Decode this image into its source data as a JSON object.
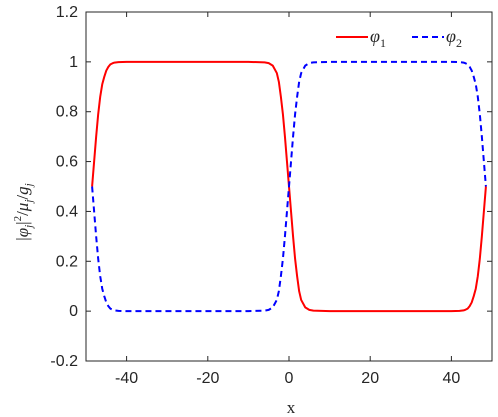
{
  "chart_data": {
    "type": "line",
    "xlabel": "x",
    "ylabel": "|φj|²/μj/gj",
    "ylabel_parts": {
      "phi": "φ",
      "j1": "j",
      "sq": "2",
      "mu": "μ",
      "j2": "j",
      "g": "g",
      "j3": "j"
    },
    "xlim": [
      -50,
      50
    ],
    "ylim": [
      -0.2,
      1.2
    ],
    "x_ticks": [
      -40,
      -20,
      0,
      20,
      40
    ],
    "x_tick_labels": [
      "-40",
      "-20",
      "0",
      "20",
      "40"
    ],
    "y_ticks": [
      -0.2,
      0,
      0.2,
      0.4,
      0.6,
      0.8,
      1.0,
      1.2
    ],
    "y_tick_labels": [
      "-0.2",
      "0",
      "0.2",
      "0.4",
      "0.6",
      "0.8",
      "1",
      "1.2"
    ],
    "grid": false,
    "legend_position": "top-right",
    "series": [
      {
        "name": "φ",
        "name_subscript": "1",
        "color": "#ff0000",
        "line_style": "solid",
        "x": [
          -48.5,
          -48,
          -47.5,
          -47,
          -46.5,
          -46,
          -45.5,
          -45,
          -44.5,
          -44,
          -43.5,
          -43,
          -42,
          -40,
          -30,
          -20,
          -10,
          -6,
          -5,
          -4,
          -3,
          -2.5,
          -2,
          -1.5,
          -1,
          -0.5,
          0,
          0.5,
          1,
          1.5,
          2,
          2.5,
          3,
          4,
          5,
          6,
          10,
          20,
          30,
          40,
          42,
          43,
          43.5,
          44,
          44.5,
          45,
          45.5,
          46,
          46.5,
          47,
          47.5,
          48,
          48.5
        ],
        "y": [
          0.5,
          0.6,
          0.7,
          0.79,
          0.86,
          0.91,
          0.94,
          0.965,
          0.98,
          0.99,
          0.994,
          0.997,
          0.999,
          1.0,
          1.0,
          1.0,
          1.0,
          0.998,
          0.995,
          0.985,
          0.955,
          0.92,
          0.86,
          0.79,
          0.7,
          0.6,
          0.5,
          0.4,
          0.3,
          0.21,
          0.14,
          0.08,
          0.045,
          0.015,
          0.005,
          0.002,
          0.0,
          0.0,
          0.0,
          0.0,
          0.001,
          0.003,
          0.006,
          0.01,
          0.02,
          0.035,
          0.06,
          0.09,
          0.14,
          0.21,
          0.3,
          0.4,
          0.5
        ]
      },
      {
        "name": "φ",
        "name_subscript": "2",
        "color": "#0000ff",
        "line_style": "dashed",
        "x": [
          -48.5,
          -48,
          -47.5,
          -47,
          -46.5,
          -46,
          -45.5,
          -45,
          -44.5,
          -44,
          -43.5,
          -43,
          -42,
          -40,
          -30,
          -20,
          -10,
          -6,
          -5,
          -4,
          -3,
          -2.5,
          -2,
          -1.5,
          -1,
          -0.5,
          0,
          0.5,
          1,
          1.5,
          2,
          2.5,
          3,
          4,
          5,
          6,
          10,
          20,
          30,
          40,
          42,
          43,
          43.5,
          44,
          44.5,
          45,
          45.5,
          46,
          46.5,
          47,
          47.5,
          48,
          48.5
        ],
        "y": [
          0.5,
          0.4,
          0.3,
          0.21,
          0.14,
          0.09,
          0.06,
          0.035,
          0.02,
          0.01,
          0.006,
          0.003,
          0.001,
          0.0,
          0.0,
          0.0,
          0.0,
          0.002,
          0.005,
          0.015,
          0.045,
          0.08,
          0.14,
          0.21,
          0.3,
          0.4,
          0.5,
          0.6,
          0.7,
          0.79,
          0.86,
          0.92,
          0.955,
          0.985,
          0.995,
          0.998,
          1.0,
          1.0,
          1.0,
          1.0,
          0.999,
          0.997,
          0.994,
          0.99,
          0.98,
          0.965,
          0.94,
          0.91,
          0.86,
          0.79,
          0.7,
          0.6,
          0.5
        ]
      }
    ]
  }
}
